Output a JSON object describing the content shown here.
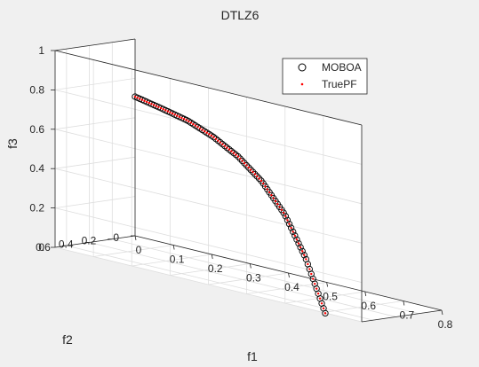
{
  "chart_data": {
    "type": "scatter",
    "projection": "3d",
    "title": "DTLZ6",
    "xlabel": "f1",
    "ylabel": "f2",
    "zlabel": "f3",
    "xlim": [
      0,
      0.8
    ],
    "ylim": [
      0,
      0.7
    ],
    "zlim": [
      0,
      1
    ],
    "xticks": [
      "0",
      "0.1",
      "0.2",
      "0.3",
      "0.4",
      "0.5",
      "0.6",
      "0.7",
      "0.8"
    ],
    "yticks": [
      "0",
      "0.2",
      "0.4",
      "0.6"
    ],
    "zticks": [
      "0",
      "0.2",
      "0.4",
      "0.6",
      "0.8",
      "1"
    ],
    "grid": true,
    "legend_position": "top-right",
    "series": [
      {
        "name": "MOBOA",
        "marker": "circle-open",
        "color": "#000000"
      },
      {
        "name": "TruePF",
        "marker": "dot",
        "color": "#ff0000"
      }
    ],
    "front": {
      "description_points_t": [
        0,
        0.125,
        0.25,
        0.375,
        0.5,
        0.625,
        0.75,
        0.875,
        1.0
      ],
      "f1": [
        0.0,
        0.098,
        0.195,
        0.29,
        0.383,
        0.471,
        0.556,
        0.634,
        0.707
      ],
      "f2": [
        0.0,
        0.098,
        0.195,
        0.29,
        0.383,
        0.471,
        0.556,
        0.634,
        0.707
      ],
      "f3": [
        0.707,
        0.702,
        0.694,
        0.665,
        0.616,
        0.539,
        0.419,
        0.24,
        0.0
      ]
    }
  }
}
